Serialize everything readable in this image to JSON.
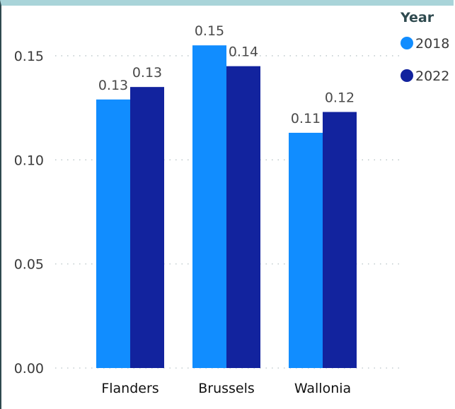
{
  "chart_data": {
    "type": "bar",
    "categories": [
      "Flanders",
      "Brussels",
      "Wallonia"
    ],
    "series": [
      {
        "name": "2018",
        "values": [
          0.129,
          0.155,
          0.113
        ],
        "labels": [
          "0.13",
          "0.15",
          "0.11"
        ],
        "color": "#118dff"
      },
      {
        "name": "2022",
        "values": [
          0.135,
          0.145,
          0.123
        ],
        "labels": [
          "0.13",
          "0.14",
          "0.12"
        ],
        "color": "#12239e"
      }
    ],
    "ylim": [
      0,
      0.17
    ],
    "yticks": [
      0.0,
      0.05,
      0.1,
      0.15
    ],
    "ytick_labels": [
      "0.00",
      "0.05",
      "0.10",
      "0.15"
    ],
    "grid": true,
    "legend": {
      "title": "Year",
      "placement": "top-right"
    }
  }
}
